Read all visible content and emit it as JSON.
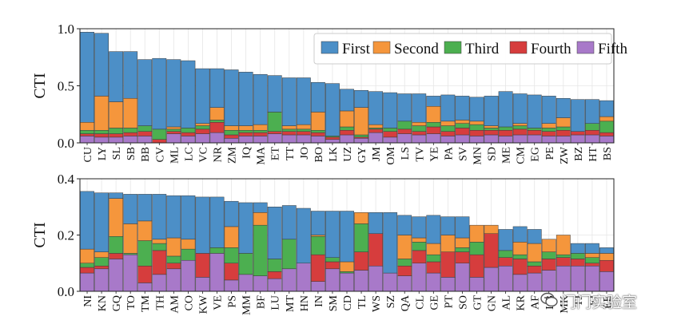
{
  "colors": {
    "First": "#4c8fc7",
    "Second": "#f5963c",
    "Third": "#4caf50",
    "Fourth": "#d63d3d",
    "Fifth": "#a879c9"
  },
  "watermark": {
    "text": "门门实验室",
    "icon": "wechat-like-icon"
  },
  "chart_data": [
    {
      "type": "bar",
      "stacked": true,
      "ylabel": "CTI",
      "ylim": [
        0,
        1.0
      ],
      "yticks": [
        "0.0",
        "0.5",
        "1.0"
      ],
      "grid": true,
      "legend": {
        "placement": "top-right",
        "entries": [
          "First",
          "Second",
          "Third",
          "Fourth",
          "Fifth"
        ]
      },
      "categories": [
        "CU",
        "LY",
        "SL",
        "SB",
        "BB",
        "CV",
        "ML",
        "LC",
        "VC",
        "NR",
        "ZM",
        "IQ",
        "MA",
        "ET",
        "TT",
        "JO",
        "BO",
        "LK",
        "UZ",
        "GY",
        "JM",
        "OM",
        "LS",
        "TV",
        "YE",
        "PA",
        "SV",
        "MN",
        "SD",
        "ME",
        "CM",
        "EG",
        "PE",
        "ZW",
        "BZ",
        "HT",
        "BS"
      ],
      "series": [
        {
          "name": "Fifth",
          "values": [
            0.06,
            0.05,
            0.05,
            0.06,
            0.06,
            0.0,
            0.08,
            0.06,
            0.08,
            0.09,
            0.04,
            0.06,
            0.06,
            0.08,
            0.07,
            0.07,
            0.06,
            0.03,
            0.07,
            0.04,
            0.09,
            0.05,
            0.08,
            0.07,
            0.08,
            0.06,
            0.07,
            0.06,
            0.07,
            0.06,
            0.07,
            0.07,
            0.06,
            0.06,
            0.07,
            0.07,
            0.06
          ]
        },
        {
          "name": "Fourth",
          "values": [
            0.02,
            0.03,
            0.03,
            0.03,
            0.04,
            0.03,
            0.02,
            0.03,
            0.04,
            0.09,
            0.03,
            0.03,
            0.03,
            0.02,
            0.03,
            0.03,
            0.03,
            0.02,
            0.04,
            0.01,
            0.03,
            0.05,
            0.04,
            0.03,
            0.06,
            0.04,
            0.06,
            0.05,
            0.04,
            0.05,
            0.05,
            0.04,
            0.04,
            0.05,
            0.03,
            0.04,
            0.03
          ]
        },
        {
          "name": "Third",
          "values": [
            0.03,
            0.03,
            0.05,
            0.04,
            0.05,
            0.09,
            0.02,
            0.04,
            0.03,
            0.02,
            0.04,
            0.02,
            0.02,
            0.17,
            0.02,
            0.02,
            0.02,
            0.01,
            0.03,
            0.02,
            0.01,
            0.03,
            0.07,
            0.05,
            0.04,
            0.05,
            0.04,
            0.05,
            0.02,
            0.03,
            0.03,
            0.02,
            0.03,
            0.03,
            0.0,
            0.06,
            0.1
          ]
        },
        {
          "name": "Second",
          "values": [
            0.07,
            0.3,
            0.23,
            0.26,
            0.0,
            0.0,
            0.02,
            0.0,
            0.02,
            0.11,
            0.04,
            0.04,
            0.05,
            0.0,
            0.03,
            0.04,
            0.16,
            0.0,
            0.14,
            0.24,
            0.03,
            0.0,
            0.0,
            0.03,
            0.14,
            0.04,
            0.03,
            0.03,
            0.02,
            0.0,
            0.02,
            0.0,
            0.04,
            0.08,
            0.0,
            0.0,
            0.04
          ]
        },
        {
          "name": "First",
          "values": [
            0.79,
            0.55,
            0.44,
            0.41,
            0.58,
            0.62,
            0.59,
            0.59,
            0.48,
            0.34,
            0.49,
            0.47,
            0.44,
            0.32,
            0.42,
            0.41,
            0.26,
            0.46,
            0.19,
            0.15,
            0.29,
            0.31,
            0.24,
            0.25,
            0.09,
            0.23,
            0.21,
            0.21,
            0.26,
            0.31,
            0.26,
            0.29,
            0.24,
            0.17,
            0.28,
            0.21,
            0.14
          ]
        }
      ]
    },
    {
      "type": "bar",
      "stacked": true,
      "ylabel": "CTI",
      "ylim": [
        0,
        0.4
      ],
      "yticks": [
        "0.0",
        "0.2",
        "0.4"
      ],
      "grid": true,
      "categories": [
        "NI",
        "KN",
        "GQ",
        "TO",
        "TM",
        "TH",
        "AM",
        "CO",
        "KW",
        "VE",
        "PS",
        "MM",
        "BF",
        "LU",
        "MT",
        "HN",
        "IN",
        "SM",
        "CD",
        "TL",
        "WS",
        "SZ",
        "QA",
        "CL",
        "GE",
        "PT",
        "SO",
        "GT",
        "GN",
        "AL",
        "KR",
        "AF",
        "LB",
        "MK",
        "TJ",
        "FJ",
        "EE"
      ],
      "series": [
        {
          "name": "Fifth",
          "values": [
            0.065,
            0.08,
            0.115,
            0.13,
            0.03,
            0.06,
            0.08,
            0.11,
            0.05,
            0.135,
            0.04,
            0.06,
            0.055,
            0.045,
            0.08,
            0.1,
            0.035,
            0.08,
            0.065,
            0.075,
            0.09,
            0.065,
            0.055,
            0.1,
            0.065,
            0.05,
            0.1,
            0.05,
            0.085,
            0.09,
            0.06,
            0.065,
            0.075,
            0.09,
            0.09,
            0.09,
            0.07
          ]
        },
        {
          "name": "Fourth",
          "values": [
            0.02,
            0.01,
            0.02,
            0.0,
            0.06,
            0.085,
            0.02,
            0.0,
            0.085,
            0.0,
            0.06,
            0.0,
            0.0,
            0.025,
            0.0,
            0.0,
            0.095,
            0.025,
            0.0,
            0.065,
            0.115,
            0.0,
            0.035,
            0.045,
            0.04,
            0.09,
            0.04,
            0.08,
            0.12,
            0.03,
            0.055,
            0.025,
            0.04,
            0.03,
            0.025,
            0.01,
            0.04
          ]
        },
        {
          "name": "Third",
          "values": [
            0.015,
            0.03,
            0.06,
            0.005,
            0.09,
            0.025,
            0.025,
            0.04,
            0.0,
            0.02,
            0.055,
            0.075,
            0.18,
            0.045,
            0.105,
            0.0,
            0.065,
            0.015,
            0.005,
            0.1,
            0.0,
            0.0,
            0.025,
            0.03,
            0.025,
            0.0,
            0.015,
            0.045,
            0.0,
            0.025,
            0.015,
            0.015,
            0.025,
            0.01,
            0.02,
            0.02,
            0.0
          ]
        },
        {
          "name": "Second",
          "values": [
            0.05,
            0.02,
            0.135,
            0.105,
            0.07,
            0.015,
            0.065,
            0.035,
            0.0,
            0.0,
            0.075,
            0.0,
            0.045,
            0.0,
            0.0,
            0.0,
            0.005,
            0.0,
            0.035,
            0.04,
            0.0,
            0.0,
            0.085,
            0.015,
            0.04,
            0.06,
            0.035,
            0.06,
            0.03,
            0.0,
            0.045,
            0.065,
            0.045,
            0.07,
            0.0,
            0.015,
            0.025
          ]
        },
        {
          "name": "First",
          "values": [
            0.205,
            0.21,
            0.02,
            0.105,
            0.095,
            0.16,
            0.15,
            0.155,
            0.2,
            0.18,
            0.09,
            0.18,
            0.035,
            0.185,
            0.12,
            0.195,
            0.085,
            0.165,
            0.18,
            0.0,
            0.075,
            0.215,
            0.07,
            0.075,
            0.1,
            0.065,
            0.075,
            0.0,
            0.0,
            0.075,
            0.055,
            0.05,
            0.0,
            0.0,
            0.035,
            0.035,
            0.02
          ]
        }
      ]
    }
  ]
}
